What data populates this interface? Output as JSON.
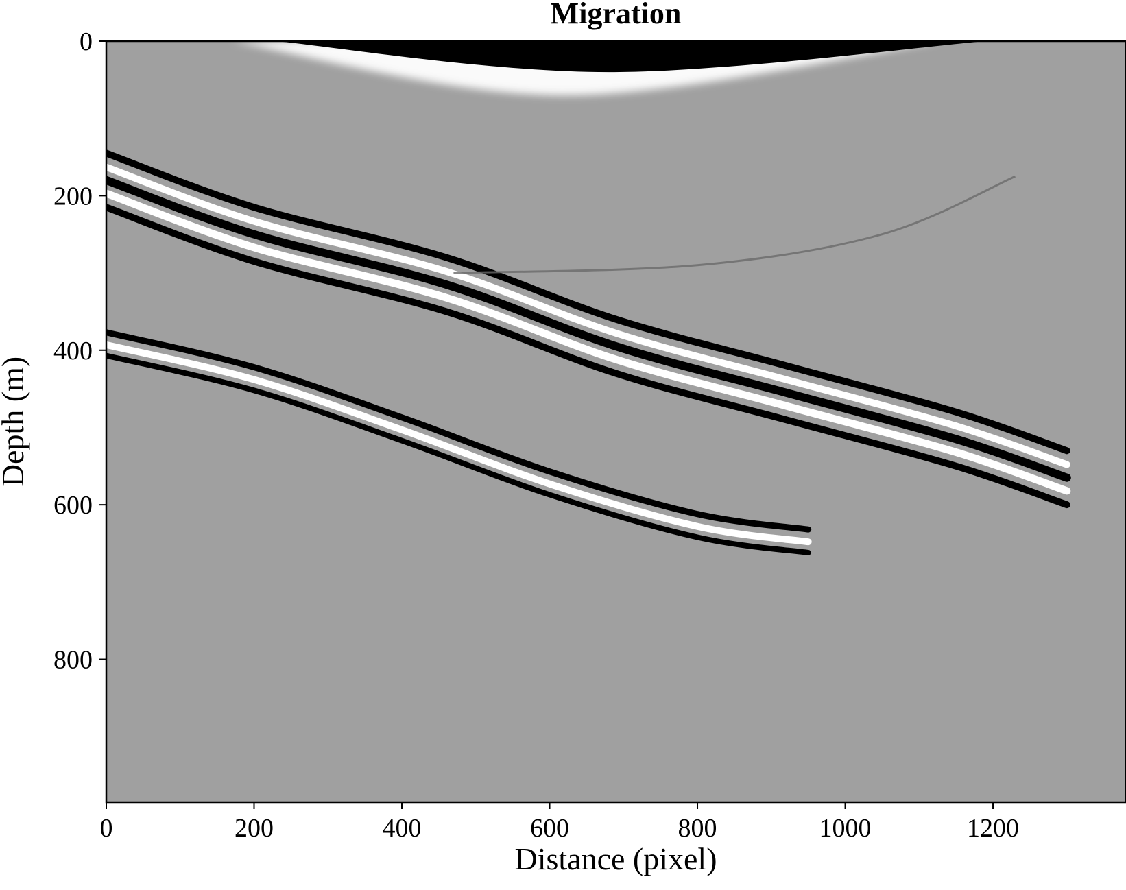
{
  "chart_data": {
    "type": "heatmap",
    "title": "Migration",
    "xlabel": "Distance (pixel)",
    "ylabel": "Depth (m)",
    "xlim": [
      0,
      1380
    ],
    "ylim": [
      985,
      0
    ],
    "x_ticks": [
      0,
      200,
      400,
      600,
      800,
      1000,
      1200
    ],
    "y_ticks": [
      0,
      200,
      400,
      600,
      800
    ],
    "colormap": "gray",
    "colors": {
      "background": "#a0a0a0",
      "positive": "#ffffff",
      "negative": "#000000"
    },
    "grid": false,
    "features": [
      {
        "name": "direct-arrival",
        "kind": "arc",
        "x": [
          230,
          680,
          1190
        ],
        "y": [
          0,
          40,
          0
        ]
      },
      {
        "name": "reflector-1",
        "kind": "wavelet-band",
        "x": [
          0,
          200,
          460,
          690,
          920,
          1150,
          1300
        ],
        "y": [
          175,
          245,
          310,
          390,
          450,
          510,
          560
        ]
      },
      {
        "name": "reflector-2",
        "kind": "wavelet-band",
        "x": [
          0,
          200,
          400,
          600,
          800,
          950
        ],
        "y": [
          385,
          430,
          495,
          565,
          620,
          640
        ]
      },
      {
        "name": "diffraction-tail",
        "kind": "faint-arc",
        "x": [
          470,
          800,
          1050,
          1230
        ],
        "y": [
          300,
          290,
          250,
          175
        ]
      }
    ]
  }
}
